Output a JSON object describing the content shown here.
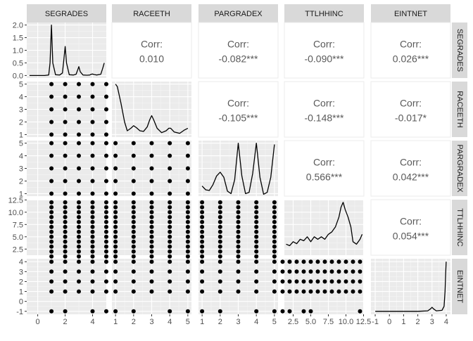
{
  "chart_data": {
    "type": "scatter",
    "variables": [
      "SEGRADES",
      "RACEETH",
      "PARGRADEX",
      "TTLHHINC",
      "EINTNET"
    ],
    "corr_label": "Corr:",
    "correlations": {
      "RACEETH|SEGRADES": "0.010",
      "PARGRADEX|SEGRADES": "-0.082***",
      "TTLHHINC|SEGRADES": "-0.090***",
      "EINTNET|SEGRADES": "0.026***",
      "PARGRADEX|RACEETH": "-0.105***",
      "TTLHHINC|RACEETH": "-0.148***",
      "EINTNET|RACEETH": "-0.017*",
      "TTLHHINC|PARGRADEX": "0.566***",
      "EINTNET|PARGRADEX": "0.042***",
      "EINTNET|TTLHHINC": "0.054***"
    },
    "axes": {
      "SEGRADES": {
        "range": [
          -0.8,
          5.0
        ],
        "ticks": [
          0,
          2,
          4
        ],
        "tick_labels": [
          "0",
          "2",
          "4"
        ],
        "values": [
          -1,
          1,
          2,
          3,
          4,
          5
        ]
      },
      "RACEETH": {
        "range": [
          0.8,
          5.2
        ],
        "ticks": [
          1,
          2,
          3,
          4,
          5
        ],
        "tick_labels": [
          "1",
          "2",
          "3",
          "4",
          "5"
        ],
        "values": [
          -1,
          1,
          2,
          3,
          4,
          5
        ]
      },
      "PARGRADEX": {
        "range": [
          0.8,
          5.2
        ],
        "ticks": [
          1,
          2,
          3,
          4,
          5
        ],
        "tick_labels": [
          "1",
          "2",
          "3",
          "4",
          "5"
        ],
        "values": [
          -1,
          1,
          2,
          3,
          4,
          5
        ]
      },
      "TTLHHINC": {
        "range": [
          1.25,
          12.55
        ],
        "ticks": [
          2.5,
          5.0,
          7.5,
          10.0,
          12.5
        ],
        "tick_labels": [
          "2.5",
          "5.0",
          "7.5",
          "10.0",
          "12.5"
        ],
        "values": [
          -1,
          1,
          2,
          3,
          4,
          5,
          6,
          7,
          8,
          9,
          10,
          11,
          12
        ]
      },
      "EINTNET": {
        "range": [
          -1.3,
          4.3
        ],
        "ticks": [
          -1,
          0,
          1,
          2,
          3,
          4
        ],
        "tick_labels": [
          "-1",
          "0",
          "1",
          "2",
          "3",
          "4"
        ],
        "values": [
          -1,
          1,
          2,
          3,
          4
        ]
      }
    },
    "y_axis_labels": {
      "SEGRADES": {
        "ticks": [
          0.0,
          0.5,
          1.0,
          1.5,
          2.0
        ],
        "tick_labels": [
          "0.0",
          "0.5",
          "1.0",
          "1.5",
          "2.0"
        ],
        "range": [
          -0.1,
          2.1
        ]
      },
      "RACEETH": {
        "ticks": [
          1,
          2,
          3,
          4,
          5
        ],
        "tick_labels": [
          "1",
          "2",
          "3",
          "4",
          "5"
        ],
        "range": [
          0.8,
          5.2
        ]
      },
      "PARGRADEX": {
        "ticks": [
          1,
          2,
          3,
          4,
          5
        ],
        "tick_labels": [
          "1",
          "2",
          "3",
          "4",
          "5"
        ],
        "range": [
          0.8,
          5.2
        ]
      },
      "TTLHHINC": {
        "ticks": [
          2.5,
          5.0,
          7.5,
          10.0,
          12.5
        ],
        "tick_labels": [
          "2.5",
          "5.0",
          "7.5",
          "10.0",
          "12.5"
        ],
        "range": [
          1.25,
          12.55
        ]
      },
      "EINTNET": {
        "ticks": [
          -1,
          0,
          1,
          2,
          3,
          4
        ],
        "tick_labels": [
          "-1",
          "0",
          "1",
          "2",
          "3",
          "4"
        ],
        "range": [
          -1.3,
          4.3
        ]
      }
    },
    "densities": {
      "SEGRADES": {
        "x": [
          -0.6,
          0.5,
          0.8,
          0.9,
          1.0,
          1.1,
          1.3,
          1.6,
          1.8,
          1.9,
          2.0,
          2.1,
          2.3,
          2.6,
          2.8,
          2.9,
          3.0,
          3.1,
          3.3,
          3.6,
          3.8,
          3.9,
          4.0,
          4.1,
          4.3,
          4.6,
          4.75,
          4.85
        ],
        "y": [
          0,
          0,
          0.02,
          0.5,
          2.0,
          0.5,
          0.03,
          0.02,
          0.1,
          0.6,
          1.15,
          0.5,
          0.03,
          0.02,
          0.05,
          0.2,
          0.35,
          0.15,
          0.02,
          0.01,
          0.02,
          0.05,
          0.06,
          0.04,
          0.02,
          0.05,
          0.3,
          0.5
        ]
      },
      "RACEETH": {
        "x": [
          1.0,
          1.1,
          1.3,
          1.5,
          1.65,
          1.85,
          2.0,
          2.15,
          2.35,
          2.55,
          2.75,
          2.9,
          3.0,
          3.1,
          3.3,
          3.55,
          3.8,
          3.95,
          4.05,
          4.25,
          4.55,
          4.8,
          5.0
        ],
        "y": [
          5.0,
          4.8,
          3.5,
          2.0,
          1.3,
          1.5,
          1.7,
          1.55,
          1.3,
          1.25,
          1.6,
          2.2,
          2.5,
          2.2,
          1.5,
          1.15,
          1.3,
          1.5,
          1.5,
          1.2,
          1.1,
          1.35,
          1.5
        ]
      },
      "PARGRADEX": {
        "x": [
          1.0,
          1.2,
          1.4,
          1.6,
          1.8,
          2.0,
          2.2,
          2.4,
          2.6,
          2.8,
          3.0,
          3.2,
          3.4,
          3.6,
          3.8,
          4.0,
          4.2,
          4.4,
          4.6,
          4.8,
          5.0
        ],
        "y": [
          1.6,
          1.3,
          1.25,
          1.7,
          2.4,
          2.7,
          2.3,
          1.2,
          1.0,
          2.1,
          5.0,
          2.4,
          1.0,
          1.1,
          2.6,
          5.0,
          2.3,
          0.95,
          1.1,
          2.3,
          4.9
        ]
      },
      "TTLHHINC": {
        "x": [
          1.5,
          2.0,
          2.5,
          3.0,
          3.5,
          4.0,
          4.5,
          5.0,
          5.5,
          6.0,
          6.5,
          7.0,
          7.5,
          8.0,
          8.5,
          9.0,
          9.3,
          9.6,
          9.9,
          10.3,
          10.7,
          11.0,
          11.5,
          12.0,
          12.3
        ],
        "y": [
          3.5,
          3.2,
          4.0,
          3.6,
          4.5,
          4.2,
          5.0,
          4.0,
          5.0,
          4.5,
          5.0,
          4.5,
          5.5,
          6.0,
          7.0,
          9.0,
          11.0,
          12.0,
          10.5,
          9.0,
          7.0,
          4.0,
          3.5,
          4.5,
          5.5
        ]
      },
      "EINTNET": {
        "x": [
          -1.0,
          0.0,
          1.0,
          2.0,
          2.7,
          2.9,
          3.0,
          3.1,
          3.3,
          3.7,
          3.85,
          3.92,
          3.97,
          4.0
        ],
        "y": [
          -1.0,
          -1.0,
          -1.0,
          -1.0,
          -0.95,
          -0.75,
          -0.6,
          -0.75,
          -0.95,
          -0.9,
          -0.5,
          1.0,
          3.0,
          4.0
        ]
      }
    }
  }
}
